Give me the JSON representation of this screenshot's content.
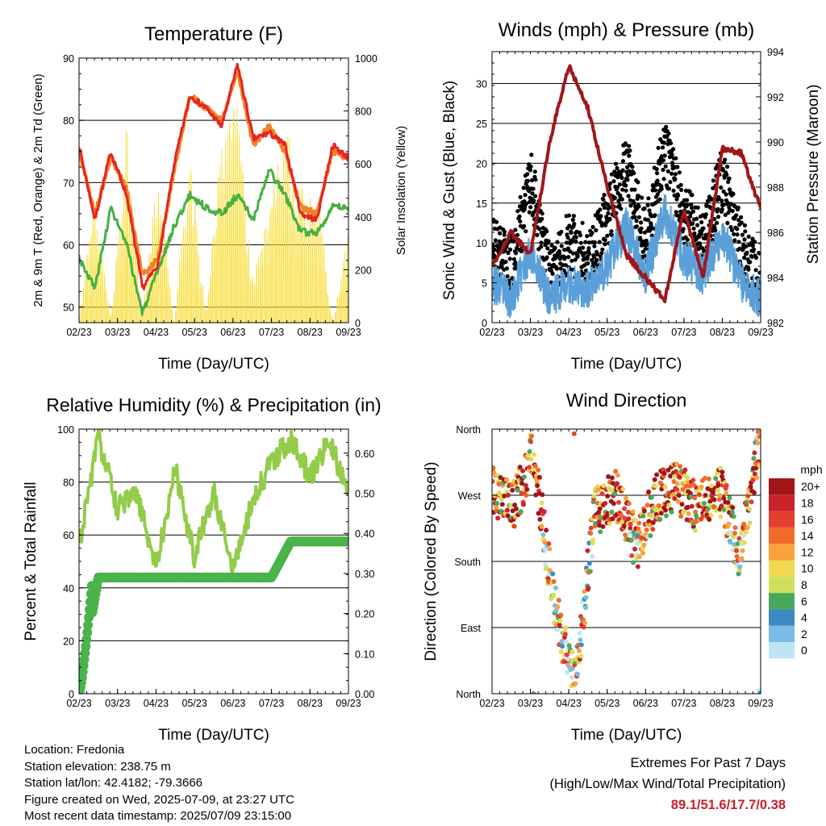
{
  "colors": {
    "t2m": "#e52420",
    "t9m": "#f4812a",
    "dewpoint": "#47b03f",
    "solar": "#f7dd38",
    "gust": "#000000",
    "wind": "#5a9fd8",
    "pressure": "#a0161a",
    "rh": "#93cc4a",
    "precip": "#4ab34a"
  },
  "panels": {
    "temperature": {
      "title": "Temperature (F)",
      "ylabel_left": "2m & 9m T (Red, Orange) & 2m Td (Green)",
      "ylabel_right": "Solar Insolation (Yellow)",
      "xlabel": "Time (Day/UTC)",
      "yticks_left": [
        "90",
        "80",
        "70",
        "60",
        "50"
      ],
      "yticks_right": [
        "1000",
        "800",
        "600",
        "400",
        "200",
        "0"
      ],
      "xticks": [
        "02/23",
        "03/23",
        "04/23",
        "05/23",
        "06/23",
        "07/23",
        "08/23",
        "09/23"
      ]
    },
    "winds": {
      "title": "Winds (mph) & Pressure (mb)",
      "ylabel_left": "Sonic Wind & Gust (Blue, Black)",
      "ylabel_right": "Station Pressure (Maroon)",
      "xlabel": "Time (Day/UTC)",
      "yticks_left": [
        "30",
        "25",
        "20",
        "15",
        "10",
        "5",
        "0"
      ],
      "yticks_right": [
        "994",
        "992",
        "990",
        "988",
        "986",
        "984",
        "982"
      ],
      "xticks": [
        "02/23",
        "03/23",
        "04/23",
        "05/23",
        "06/23",
        "07/23",
        "08/23",
        "09/23"
      ]
    },
    "humidity": {
      "title": "Relative Humidity (%) & Precipitation (in)",
      "ylabel_left": "Percent & Total Rainfall",
      "xlabel": "Time (Day/UTC)",
      "yticks_left": [
        "100",
        "80",
        "60",
        "40",
        "20",
        "0"
      ],
      "yticks_right": [
        "0.60",
        "0.50",
        "0.40",
        "0.30",
        "0.20",
        "0.10",
        "0.00"
      ],
      "xticks": [
        "02/23",
        "03/23",
        "04/23",
        "05/23",
        "06/23",
        "07/23",
        "08/23",
        "09/23"
      ]
    },
    "direction": {
      "title": "Wind Direction",
      "ylabel_left": "Direction (Colored By Speed)",
      "xlabel": "Time (Day/UTC)",
      "yticks_left": [
        "North",
        "West",
        "South",
        "East",
        "North"
      ],
      "xticks": [
        "02/23",
        "03/23",
        "04/23",
        "05/23",
        "06/23",
        "07/23",
        "08/23",
        "09/23"
      ],
      "legend": {
        "unit": "mph",
        "labels": [
          "20+",
          "18",
          "16",
          "14",
          "12",
          "10",
          "8",
          "6",
          "4",
          "2",
          "0"
        ],
        "colors": [
          "#a11619",
          "#cc2229",
          "#e2402f",
          "#f06a2c",
          "#f9a23a",
          "#f2d850",
          "#d0e05a",
          "#49a95b",
          "#3c8ac3",
          "#7cbbe5",
          "#bfe4f6"
        ]
      }
    }
  },
  "chart_data": [
    {
      "type": "line",
      "title": "Temperature (F)",
      "xlabel": "Time (Day/UTC)",
      "ylabel": "2m & 9m T (Red, Orange) & 2m Td (Green)",
      "ylabel_right": "Solar Insolation (Yellow)",
      "x": [
        "02/23",
        "02/23",
        "03/23",
        "03/23",
        "03/23",
        "04/23",
        "04/23",
        "05/23",
        "05/23",
        "06/23",
        "06/23",
        "06/23",
        "07/23",
        "07/23",
        "08/23",
        "08/23",
        "09/23",
        "09/23"
      ],
      "ylim": [
        47.5,
        90
      ],
      "ylim_right": [
        0,
        1000
      ],
      "series": [
        {
          "name": "2m T",
          "axis": "left",
          "values": [
            76,
            64,
            75,
            68,
            53,
            57,
            73,
            84,
            82,
            79,
            89,
            77,
            78,
            76,
            65,
            64,
            76,
            74
          ]
        },
        {
          "name": "9m T",
          "axis": "left",
          "values": [
            75,
            65,
            74,
            69,
            55,
            58,
            72,
            84,
            82,
            80,
            88,
            76,
            79,
            75,
            66,
            65,
            75,
            74
          ]
        },
        {
          "name": "2m Td",
          "axis": "left",
          "values": [
            58,
            53,
            66,
            60,
            49,
            56,
            63,
            68,
            66,
            65,
            68,
            64,
            72,
            68,
            62,
            62,
            66,
            66
          ]
        },
        {
          "name": "Solar Insolation",
          "axis": "right",
          "values": [
            0,
            620,
            20,
            880,
            50,
            720,
            0,
            820,
            30,
            900,
            960,
            200,
            600,
            880,
            600,
            640,
            0,
            420
          ]
        }
      ]
    },
    {
      "type": "line",
      "title": "Winds (mph) & Pressure (mb)",
      "xlabel": "Time (Day/UTC)",
      "ylabel": "Sonic Wind & Gust (Blue, Black)",
      "ylabel_right": "Station Pressure (Maroon)",
      "x": [
        "02/23",
        "02/23",
        "03/23",
        "03/23",
        "04/23",
        "04/23",
        "05/23",
        "05/23",
        "06/23",
        "06/23",
        "07/23",
        "07/23",
        "08/23",
        "08/23",
        "09/23"
      ],
      "ylim": [
        0,
        34
      ],
      "ylim_right": [
        982,
        994
      ],
      "series": [
        {
          "name": "Gust",
          "axis": "left",
          "values": [
            10,
            7,
            18,
            6,
            10,
            8,
            13,
            20,
            10,
            22,
            14,
            10,
            18,
            9,
            5
          ]
        },
        {
          "name": "Sonic Wind",
          "axis": "left",
          "values": [
            5,
            3,
            9,
            3,
            5,
            4,
            7,
            12,
            6,
            14,
            8,
            6,
            11,
            5,
            3
          ]
        },
        {
          "name": "Station Pressure",
          "axis": "right",
          "values": [
            984.5,
            986,
            985,
            990,
            993.4,
            991.5,
            988,
            985,
            984,
            983,
            987,
            984,
            989.7,
            989.5,
            987
          ]
        }
      ]
    },
    {
      "type": "line",
      "title": "Relative Humidity (%) & Precipitation (in)",
      "xlabel": "Time (Day/UTC)",
      "ylabel": "Percent & Total Rainfall",
      "x": [
        "02/23",
        "02/23",
        "03/23",
        "03/23",
        "04/23",
        "04/23",
        "05/23",
        "05/23",
        "06/23",
        "06/23",
        "07/23",
        "07/23",
        "08/23",
        "08/23",
        "09/23"
      ],
      "ylim": [
        0,
        100
      ],
      "ylim_right": [
        0,
        0.66
      ],
      "series": [
        {
          "name": "Relative Humidity",
          "axis": "left",
          "values": [
            56,
            97,
            70,
            75,
            48,
            85,
            52,
            76,
            48,
            72,
            88,
            96,
            82,
            96,
            76
          ]
        },
        {
          "name": "Total Rainfall",
          "axis": "right",
          "values": [
            0,
            0.29,
            0.29,
            0.29,
            0.29,
            0.29,
            0.29,
            0.29,
            0.29,
            0.29,
            0.29,
            0.38,
            0.38,
            0.38,
            0.38
          ]
        }
      ]
    },
    {
      "type": "scatter",
      "title": "Wind Direction",
      "xlabel": "Time (Day/UTC)",
      "ylabel": "Direction (Colored By Speed)",
      "x": [
        "02/23",
        "03/23",
        "03/23",
        "04/23",
        "04/23",
        "05/23",
        "05/23",
        "06/23",
        "06/23",
        "07/23",
        "07/23",
        "08/23",
        "08/23",
        "09/23"
      ],
      "series": [
        {
          "name": "Direction",
          "values": [
            280,
            250,
            330,
            120,
            10,
            250,
            270,
            200,
            270,
            280,
            250,
            280,
            190,
            350
          ]
        }
      ]
    }
  ],
  "footer": {
    "location": "Location: Fredonia",
    "elevation": "Station elevation: 238.75 m",
    "latlon": "Station lat/lon: 42.4182; -79.3666",
    "created": "Figure created on Wed, 2025-07-09, at 23:27 UTC",
    "recent": "Most recent data timestamp: 2025/07/09 23:15:00",
    "extremes_title": "Extremes For Past 7 Days",
    "extremes_sub": "(High/Low/Max Wind/Total Precipitation)",
    "extremes_values": "89.1/51.6/17.7/0.38"
  }
}
